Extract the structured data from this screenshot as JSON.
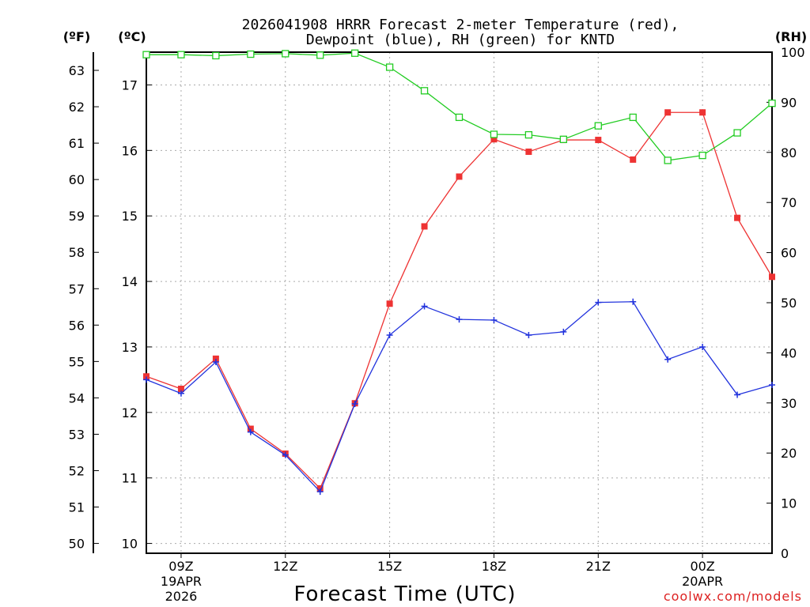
{
  "chart_data": {
    "type": "line",
    "title_line1": "2026041908 HRRR Forecast 2-meter Temperature (red),",
    "title_line2": "Dewpoint (blue), RH (green) for KNTD",
    "xlabel": "Forecast Time (UTC)",
    "credit": "coolwx.com/models",
    "unit_labels": {
      "f": "(ºF)",
      "c": "(ºC)",
      "rh": "(RH)"
    },
    "x_hours": [
      8,
      9,
      10,
      11,
      12,
      13,
      14,
      15,
      16,
      17,
      18,
      19,
      20,
      21,
      22,
      23,
      24,
      25,
      26
    ],
    "x_ticks": [
      {
        "hour": 9,
        "label": "09Z",
        "sub1": "19APR",
        "sub2": "2026"
      },
      {
        "hour": 12,
        "label": "12Z",
        "sub1": "",
        "sub2": ""
      },
      {
        "hour": 15,
        "label": "15Z",
        "sub1": "",
        "sub2": ""
      },
      {
        "hour": 18,
        "label": "18Z",
        "sub1": "",
        "sub2": ""
      },
      {
        "hour": 21,
        "label": "21Z",
        "sub1": "",
        "sub2": ""
      },
      {
        "hour": 24,
        "label": "00Z",
        "sub1": "20APR",
        "sub2": ""
      }
    ],
    "celsius_axis": {
      "range": [
        9.85,
        17.5
      ],
      "ticks": [
        10,
        11,
        12,
        13,
        14,
        15,
        16,
        17
      ]
    },
    "fahrenheit_ticks": [
      50,
      51,
      52,
      53,
      54,
      55,
      56,
      57,
      58,
      59,
      60,
      61,
      62,
      63
    ],
    "rh_axis": {
      "range": [
        0,
        100
      ],
      "ticks": [
        0,
        10,
        20,
        30,
        40,
        50,
        60,
        70,
        80,
        90,
        100
      ]
    },
    "series": [
      {
        "name": "Temperature",
        "unit": "C",
        "color": "#ee3333",
        "marker": "filled-square",
        "values": [
          12.55,
          12.36,
          12.82,
          11.75,
          11.37,
          10.84,
          12.14,
          13.66,
          14.84,
          15.6,
          16.17,
          15.98,
          16.16,
          16.16,
          15.86,
          16.58,
          16.58,
          14.97,
          14.07
        ]
      },
      {
        "name": "Dewpoint",
        "unit": "C",
        "color": "#2233dd",
        "marker": "plus",
        "values": [
          12.5,
          12.29,
          12.77,
          11.7,
          11.35,
          10.79,
          12.13,
          13.18,
          13.62,
          13.42,
          13.41,
          13.18,
          13.23,
          13.68,
          13.69,
          12.81,
          13.0,
          12.27,
          12.42
        ]
      },
      {
        "name": "RH",
        "unit": "%",
        "color": "#22cc22",
        "marker": "open-square",
        "values": [
          99.5,
          99.5,
          99.3,
          99.6,
          99.7,
          99.4,
          99.8,
          97.0,
          92.3,
          87.0,
          83.6,
          83.5,
          82.6,
          85.3,
          87.0,
          78.4,
          79.4,
          83.9,
          89.8
        ]
      }
    ]
  }
}
